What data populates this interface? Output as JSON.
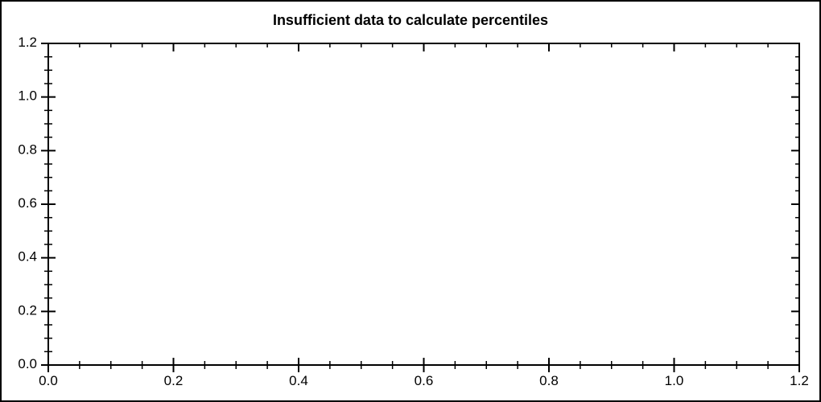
{
  "figure": {
    "background_color": "#ffffff",
    "border_color": "#000000"
  },
  "chart_data": {
    "type": "scatter",
    "title": "Insufficient data to calculate percentiles",
    "series": [],
    "xlabel": "",
    "ylabel": "",
    "xlim": [
      0.0,
      1.2
    ],
    "ylim": [
      0.0,
      1.2
    ],
    "x_major_ticks": [
      0.0,
      0.2,
      0.4,
      0.6,
      0.8,
      1.0,
      1.2
    ],
    "x_tick_labels": [
      "0.0",
      "0.2",
      "0.4",
      "0.6",
      "0.8",
      "1.0",
      "1.2"
    ],
    "y_major_ticks": [
      0.0,
      0.2,
      0.4,
      0.6,
      0.8,
      1.0,
      1.2
    ],
    "y_tick_labels": [
      "0.0",
      "0.2",
      "0.4",
      "0.6",
      "0.8",
      "1.0",
      "1.2"
    ],
    "minor_tick_interval": 0.05,
    "grid": false,
    "legend_position": "none",
    "axis_color": "#000000",
    "text_color": "#000000"
  }
}
